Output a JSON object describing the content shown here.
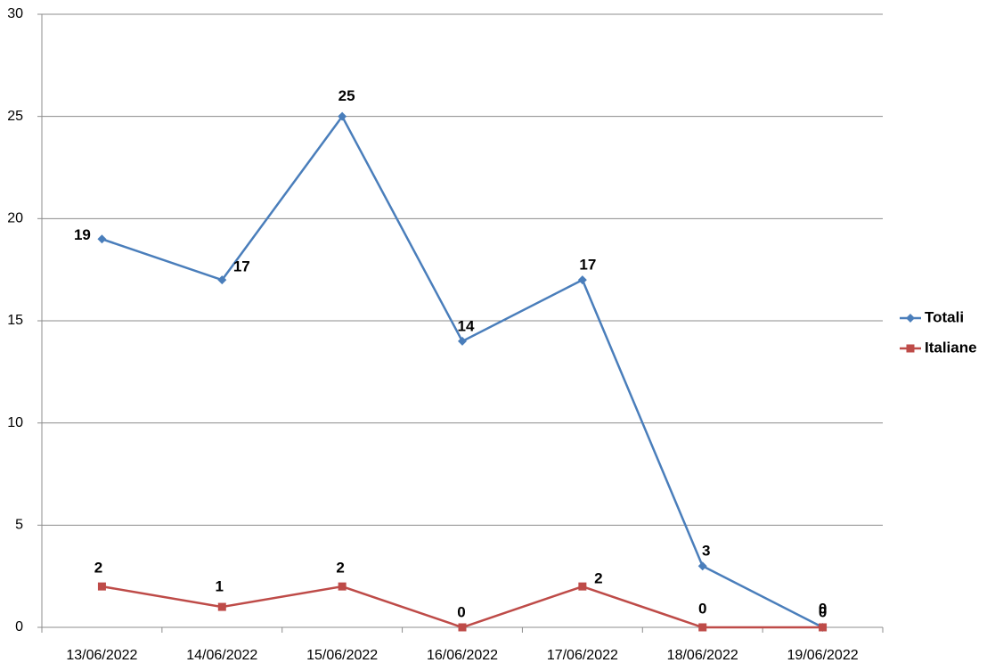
{
  "chart_data": {
    "type": "line",
    "categories": [
      "13/06/2022",
      "14/06/2022",
      "15/06/2022",
      "16/06/2022",
      "17/06/2022",
      "18/06/2022",
      "19/06/2022"
    ],
    "series": [
      {
        "name": "Totali",
        "color": "#4a7ebb",
        "values": [
          19,
          17,
          25,
          14,
          17,
          3,
          0
        ]
      },
      {
        "name": "Italiane",
        "color": "#be4b48",
        "values": [
          2,
          1,
          2,
          0,
          2,
          0,
          0
        ]
      }
    ],
    "ylim": [
      0,
      30
    ],
    "yticks": [
      0,
      5,
      10,
      15,
      20,
      25,
      30
    ],
    "grid": true,
    "legend": "right"
  }
}
